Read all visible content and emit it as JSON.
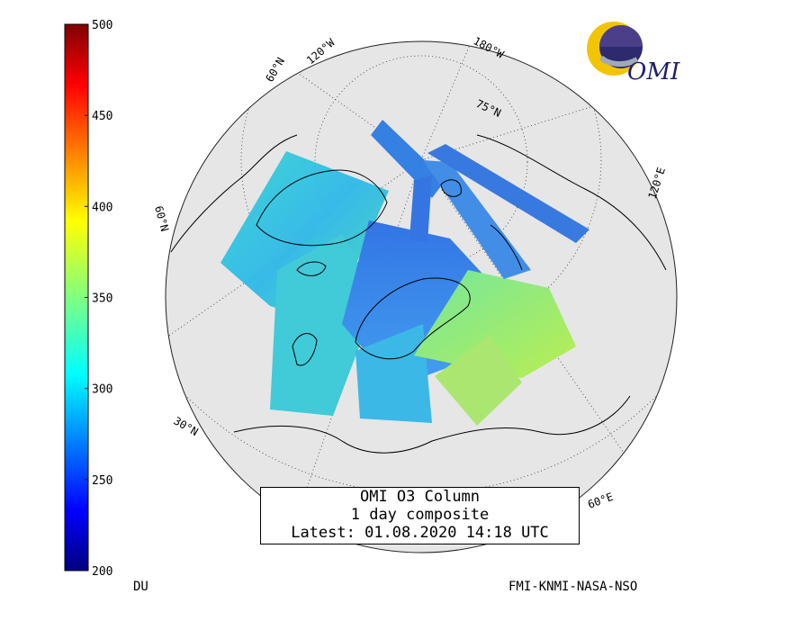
{
  "colorbar": {
    "ticks": [
      "500",
      "450",
      "400",
      "350",
      "300",
      "250",
      "200"
    ],
    "unit": "DU",
    "range": [
      200,
      500
    ]
  },
  "map": {
    "projection": "polar stereographic",
    "lon_labels": [
      "180°W",
      "120°W",
      "60°N",
      "120°E",
      "60°E"
    ],
    "lat_labels": [
      "75°N",
      "60°N",
      "30°N"
    ],
    "ozone_range_du": [
      250,
      375
    ]
  },
  "caption": {
    "line1": "OMI O3 Column",
    "line2": "1 day composite",
    "line3": "Latest: 01.08.2020 14:18 UTC"
  },
  "logo": {
    "text": "OMI"
  },
  "credits": "FMI-KNMI-NASA-NSO",
  "colors": {
    "background": "#ffffff",
    "globe": "#e6e6e6",
    "coast": "#000000"
  }
}
